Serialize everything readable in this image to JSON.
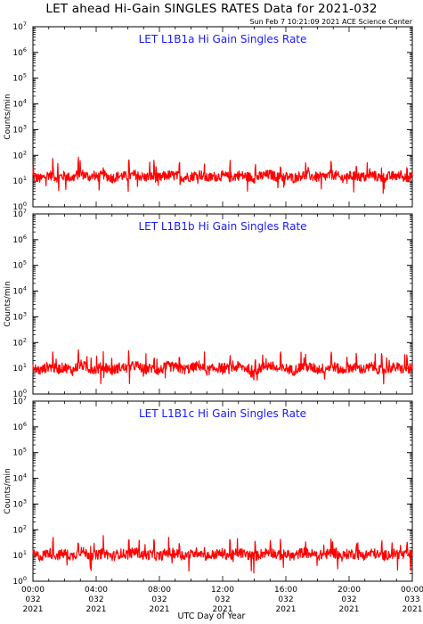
{
  "page": {
    "title": "LET ahead Hi-Gain SINGLES RATES Data for 2021-032",
    "timestamp": "Sun Feb  7 10:21:09 2021 ACE Science Center"
  },
  "colors": {
    "series": "#ff0000",
    "panel_title": "#1a1aff",
    "axes": "#000000"
  },
  "chart_data": [
    {
      "type": "line",
      "title": "LET L1B1a Hi Gain Singles Rate",
      "ylabel": "Counts/min",
      "xlabel": "",
      "yscale": "log",
      "ylim": [
        1,
        10000000
      ],
      "xlim": [
        0,
        24
      ],
      "grid": false,
      "ytick_labels": [
        {
          "base": "10",
          "exp": "0"
        },
        {
          "base": "10",
          "exp": "1"
        },
        {
          "base": "10",
          "exp": "2"
        },
        {
          "base": "10",
          "exp": "3"
        },
        {
          "base": "10",
          "exp": "4"
        },
        {
          "base": "10",
          "exp": "5"
        },
        {
          "base": "10",
          "exp": "6"
        },
        {
          "base": "10",
          "exp": "7"
        }
      ],
      "series": [
        {
          "x": [
            0,
            0.5,
            1,
            1.5,
            2,
            2.5,
            3,
            3.5,
            4,
            4.5,
            5,
            5.5,
            6,
            6.5,
            7,
            7.5,
            8,
            8.5,
            9,
            9.5,
            10,
            10.5,
            11,
            11.5,
            12,
            12.5,
            13,
            13.5,
            14,
            14.5,
            15,
            15.5,
            16,
            16.5,
            17,
            17.5,
            18,
            18.5,
            19,
            19.5,
            20,
            20.5,
            21,
            21.5,
            22,
            22.5,
            23,
            23.5,
            24
          ],
          "values": [
            15,
            12,
            18,
            14,
            16,
            13,
            20,
            15,
            14,
            17,
            13,
            16,
            15,
            18,
            14,
            15,
            13,
            17,
            16,
            14,
            15,
            19,
            13,
            15,
            16,
            14,
            17,
            15,
            13,
            16,
            18,
            14,
            15,
            13,
            17,
            16,
            14,
            15,
            18,
            13,
            16,
            15,
            14,
            17,
            13,
            15,
            16,
            14,
            15
          ]
        }
      ]
    },
    {
      "type": "line",
      "title": "LET L1B1b Hi Gain Singles Rate",
      "ylabel": "Counts/min",
      "xlabel": "",
      "yscale": "log",
      "ylim": [
        1,
        10000000
      ],
      "xlim": [
        0,
        24
      ],
      "grid": false,
      "ytick_labels": [
        {
          "base": "10",
          "exp": "0"
        },
        {
          "base": "10",
          "exp": "1"
        },
        {
          "base": "10",
          "exp": "2"
        },
        {
          "base": "10",
          "exp": "3"
        },
        {
          "base": "10",
          "exp": "4"
        },
        {
          "base": "10",
          "exp": "5"
        },
        {
          "base": "10",
          "exp": "6"
        },
        {
          "base": "10",
          "exp": "7"
        }
      ],
      "series": [
        {
          "x": [
            0,
            0.5,
            1,
            1.5,
            2,
            2.5,
            3,
            3.5,
            4,
            4.5,
            5,
            5.5,
            6,
            6.5,
            7,
            7.5,
            8,
            8.5,
            9,
            9.5,
            10,
            10.5,
            11,
            11.5,
            12,
            12.5,
            13,
            13.5,
            14,
            14.5,
            15,
            15.5,
            16,
            16.5,
            17,
            17.5,
            18,
            18.5,
            19,
            19.5,
            20,
            20.5,
            21,
            21.5,
            22,
            22.5,
            23,
            23.5,
            24
          ],
          "values": [
            10,
            8,
            12,
            9,
            11,
            8,
            14,
            10,
            9,
            12,
            8,
            11,
            10,
            13,
            9,
            10,
            8,
            12,
            11,
            9,
            10,
            13,
            8,
            10,
            11,
            9,
            12,
            10,
            8,
            11,
            13,
            9,
            10,
            8,
            12,
            11,
            9,
            10,
            12,
            8,
            11,
            10,
            9,
            12,
            8,
            10,
            11,
            9,
            10
          ]
        }
      ]
    },
    {
      "type": "line",
      "title": "LET L1B1c Hi Gain Singles Rate",
      "ylabel": "Counts/min",
      "xlabel": "",
      "yscale": "log",
      "ylim": [
        1,
        10000000
      ],
      "xlim": [
        0,
        24
      ],
      "grid": false,
      "ytick_labels": [
        {
          "base": "10",
          "exp": "0"
        },
        {
          "base": "10",
          "exp": "1"
        },
        {
          "base": "10",
          "exp": "2"
        },
        {
          "base": "10",
          "exp": "3"
        },
        {
          "base": "10",
          "exp": "4"
        },
        {
          "base": "10",
          "exp": "5"
        },
        {
          "base": "10",
          "exp": "6"
        },
        {
          "base": "10",
          "exp": "7"
        }
      ],
      "xticks": [
        {
          "x": 0,
          "time": "00:00",
          "doy": "032",
          "year": "2021"
        },
        {
          "x": 4,
          "time": "04:00",
          "doy": "032",
          "year": "2021"
        },
        {
          "x": 8,
          "time": "08:00",
          "doy": "032",
          "year": "2021"
        },
        {
          "x": 12,
          "time": "12:00",
          "doy": "032",
          "year": "2021"
        },
        {
          "x": 16,
          "time": "16:00",
          "doy": "032",
          "year": "2021"
        },
        {
          "x": 20,
          "time": "20:00",
          "doy": "032",
          "year": "2021"
        },
        {
          "x": 24,
          "time": "00:00",
          "doy": "033",
          "year": "2021"
        }
      ],
      "series": [
        {
          "x": [
            0,
            0.5,
            1,
            1.5,
            2,
            2.5,
            3,
            3.5,
            4,
            4.5,
            5,
            5.5,
            6,
            6.5,
            7,
            7.5,
            8,
            8.5,
            9,
            9.5,
            10,
            10.5,
            11,
            11.5,
            12,
            12.5,
            13,
            13.5,
            14,
            14.5,
            15,
            15.5,
            16,
            16.5,
            17,
            17.5,
            18,
            18.5,
            19,
            19.5,
            20,
            20.5,
            21,
            21.5,
            22,
            22.5,
            23,
            23.5,
            24
          ],
          "values": [
            11,
            9,
            13,
            10,
            12,
            9,
            15,
            11,
            10,
            13,
            9,
            12,
            11,
            14,
            10,
            11,
            9,
            13,
            12,
            10,
            11,
            14,
            9,
            11,
            12,
            10,
            13,
            11,
            9,
            12,
            14,
            10,
            11,
            9,
            13,
            12,
            10,
            11,
            13,
            9,
            12,
            11,
            10,
            13,
            9,
            11,
            12,
            10,
            11
          ]
        }
      ]
    }
  ],
  "xaxis": {
    "label": "UTC Day of Year"
  }
}
